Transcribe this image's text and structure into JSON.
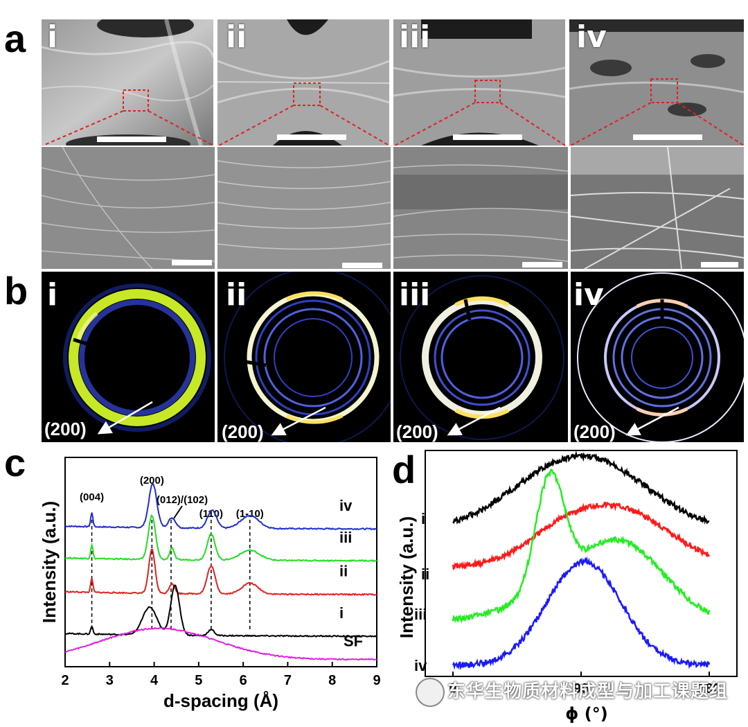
{
  "figure": {
    "panel_letters": {
      "a": "a",
      "b": "b",
      "c": "c",
      "d": "d"
    },
    "panel_a": {
      "tiles": [
        {
          "label": "i"
        },
        {
          "label": "ii"
        },
        {
          "label": "iii"
        },
        {
          "label": "iv"
        }
      ]
    },
    "panel_b": {
      "tiles": [
        {
          "label": "i",
          "peak_label": "(200)"
        },
        {
          "label": "ii",
          "peak_label": "(200)"
        },
        {
          "label": "iii",
          "peak_label": "(200)"
        },
        {
          "label": "iv",
          "peak_label": "(200)"
        }
      ]
    },
    "watermark": "东华生物质材料成型与加工课题组"
  },
  "chart_data": [
    {
      "type": "line",
      "panel": "c",
      "xlabel": "d-spacing (Å)",
      "ylabel": "Intensity (a.u.)",
      "xlim": [
        2,
        9
      ],
      "x_ticks": [
        "2",
        "3",
        "4",
        "5",
        "6",
        "7",
        "8",
        "9"
      ],
      "grid": false,
      "reflection_lines": [
        {
          "label": "(004)",
          "d": 2.6
        },
        {
          "label": "(200)",
          "d": 3.95
        },
        {
          "label": "(012)/(102)",
          "d": 4.38
        },
        {
          "label": "(110)",
          "d": 5.28
        },
        {
          "label": "(1-10)",
          "d": 6.15
        }
      ],
      "series": [
        {
          "name": "iv",
          "color": "#1f2ec8",
          "offset": 0.66,
          "peaks": [
            [
              2.6,
              0.07,
              0.025
            ],
            [
              3.97,
              0.22,
              0.09
            ],
            [
              4.4,
              0.05,
              0.08
            ],
            [
              5.3,
              0.09,
              0.1
            ],
            [
              6.15,
              0.065,
              0.2
            ]
          ]
        },
        {
          "name": "iii",
          "color": "#22dd22",
          "offset": 0.5,
          "peaks": [
            [
              2.6,
              0.07,
              0.025
            ],
            [
              3.95,
              0.22,
              0.08
            ],
            [
              4.4,
              0.06,
              0.05
            ],
            [
              5.28,
              0.13,
              0.09
            ],
            [
              6.15,
              0.05,
              0.22
            ]
          ]
        },
        {
          "name": "ii",
          "color": "#dd2222",
          "offset": 0.33,
          "peaks": [
            [
              2.6,
              0.07,
              0.025
            ],
            [
              3.95,
              0.22,
              0.07
            ],
            [
              4.4,
              0.05,
              0.06
            ],
            [
              5.28,
              0.14,
              0.09
            ],
            [
              6.15,
              0.055,
              0.18
            ]
          ]
        },
        {
          "name": "i",
          "color": "#000000",
          "offset": 0.12,
          "peaks": [
            [
              2.6,
              0.04,
              0.025
            ],
            [
              3.9,
              0.14,
              0.16
            ],
            [
              4.47,
              0.25,
              0.1
            ],
            [
              5.28,
              0.03,
              0.07
            ]
          ]
        },
        {
          "name": "SF",
          "color": "#e020e0",
          "offset": 0.0,
          "broad": [
            4.1,
            0.16,
            1.3
          ]
        }
      ]
    },
    {
      "type": "line",
      "panel": "d",
      "xlabel": "ϕ (°)",
      "ylabel": "Intensity (a.u.)",
      "x_ticks": [
        "0",
        "90",
        "180"
      ],
      "xlim": [
        0,
        180
      ],
      "grid": false,
      "series": [
        {
          "name": "i",
          "color": "#000000"
        },
        {
          "name": "ii",
          "color": "#ff1a1a"
        },
        {
          "name": "iii",
          "color": "#22ee22"
        },
        {
          "name": "iv",
          "color": "#1a1aff"
        }
      ]
    }
  ]
}
